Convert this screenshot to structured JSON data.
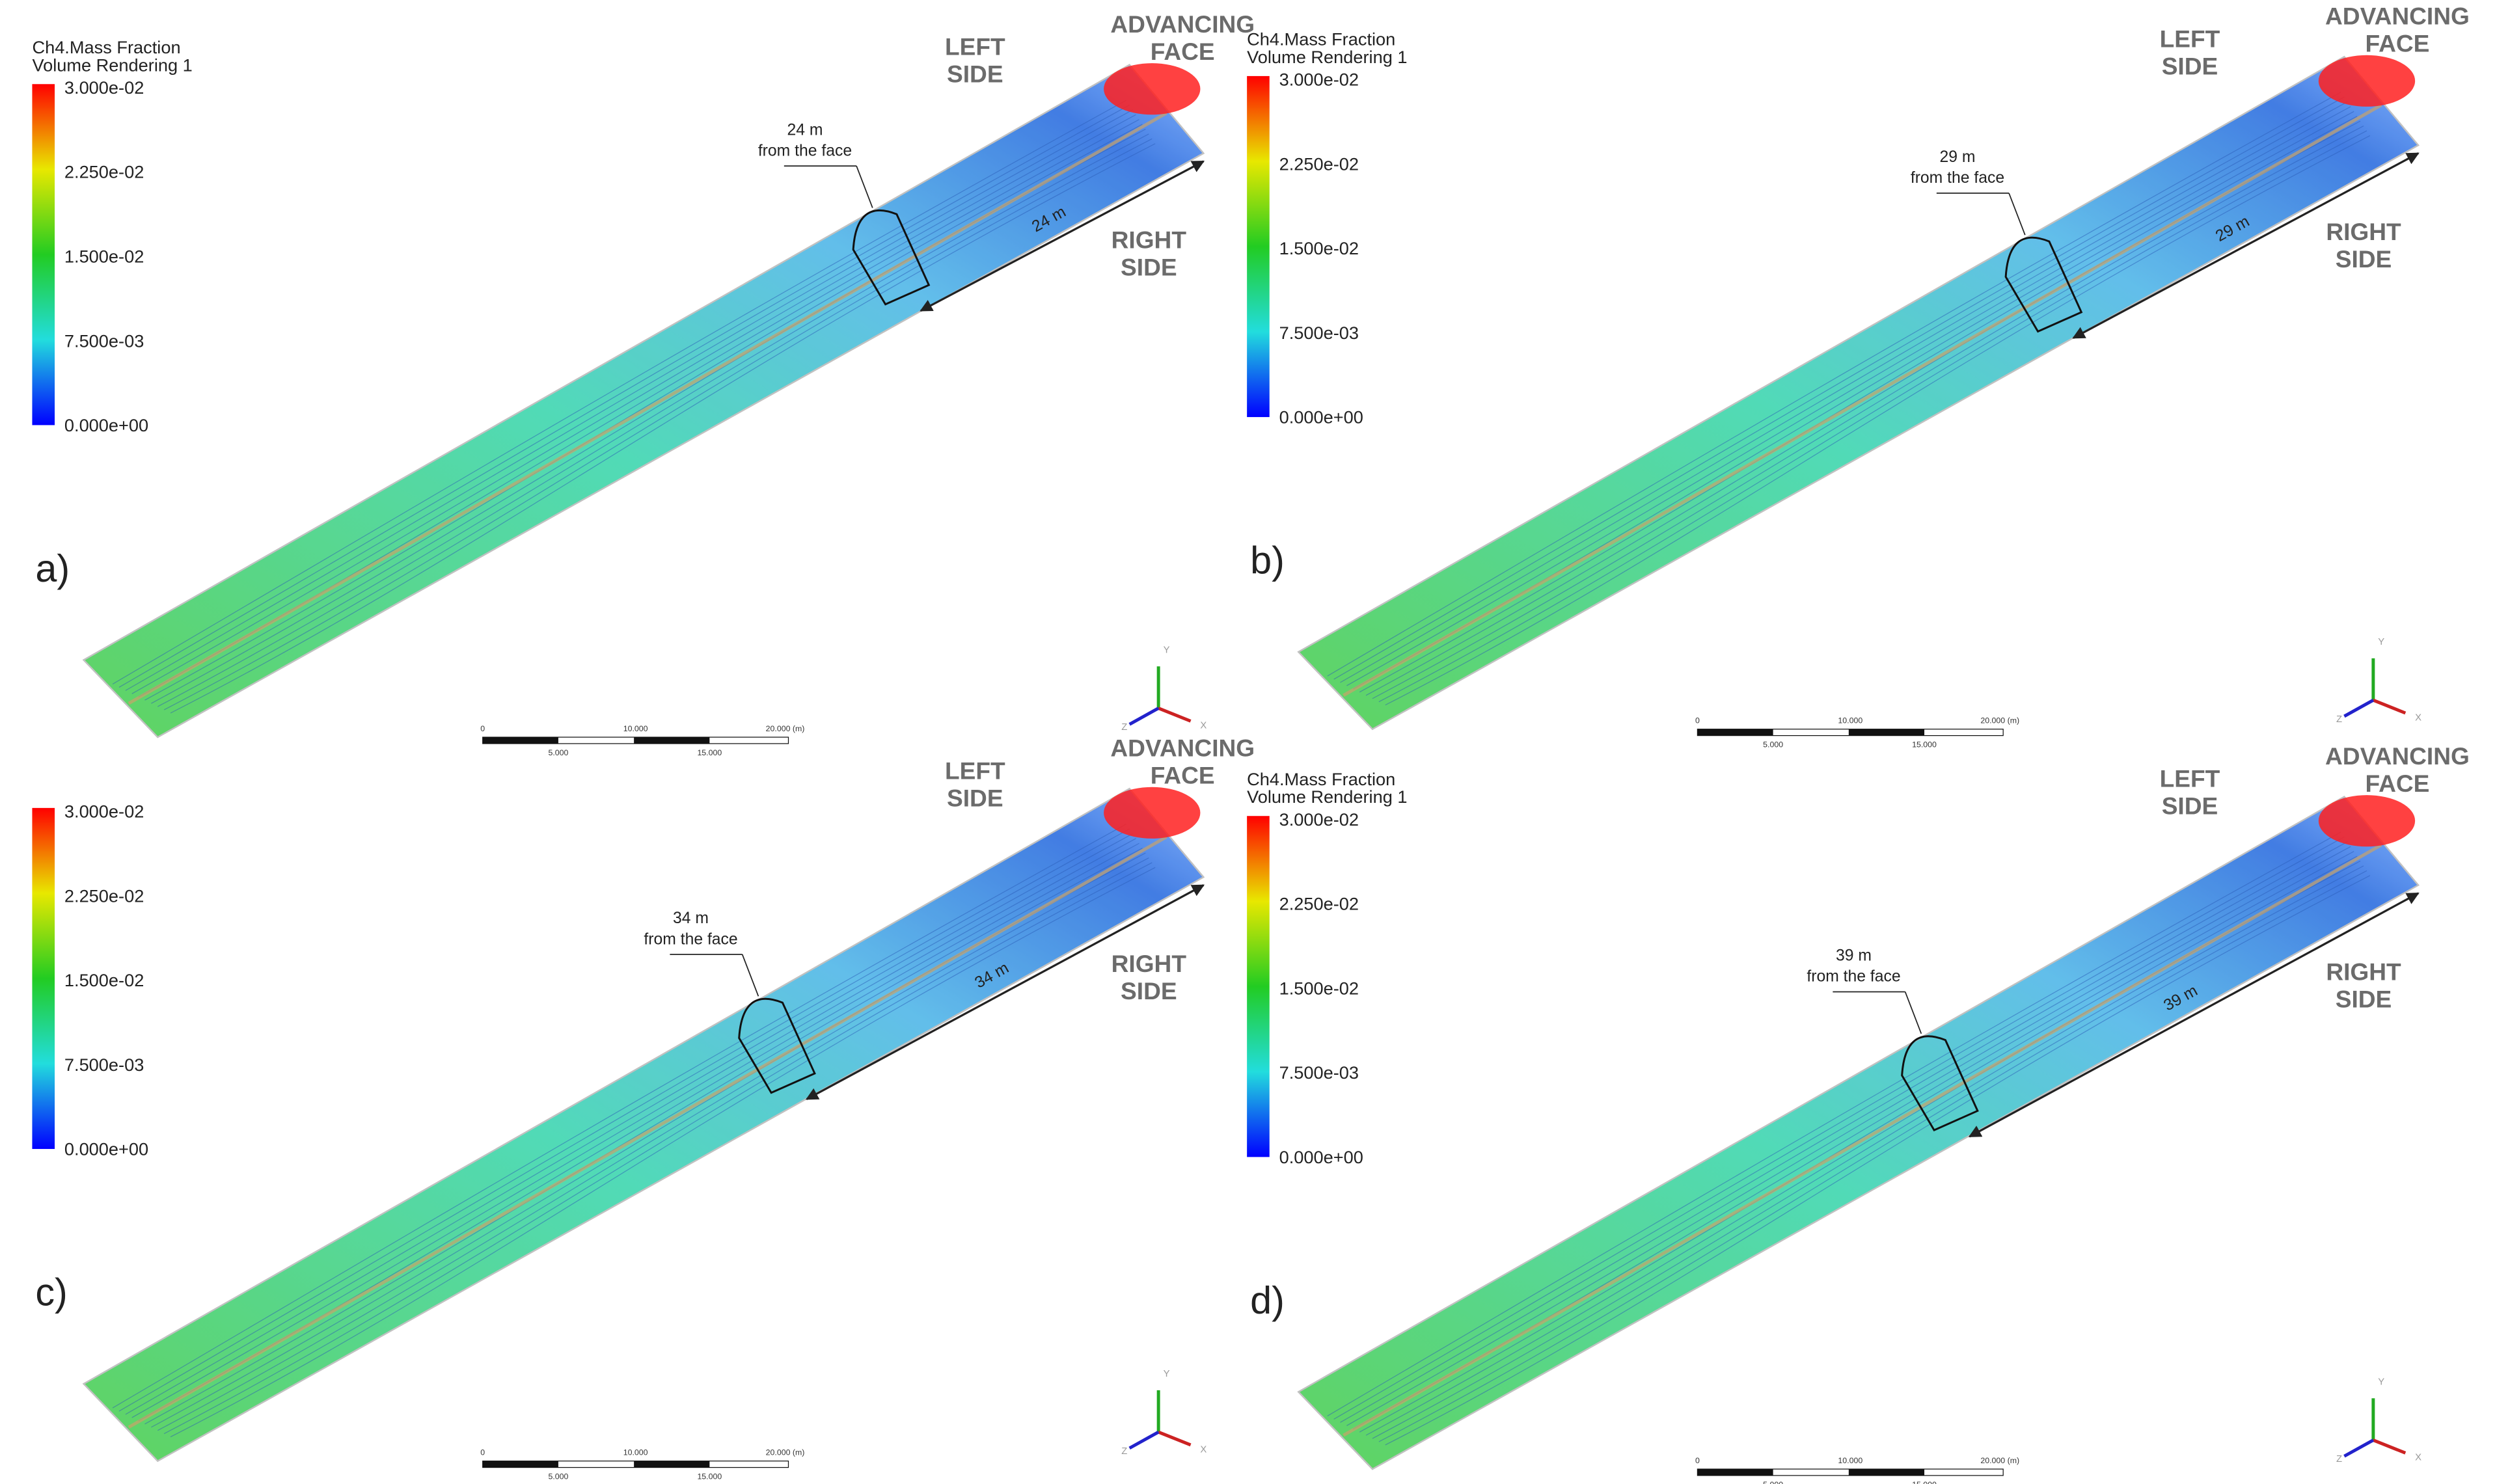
{
  "legend": {
    "ticks": [
      "3.000e-02",
      "2.250e-02",
      "1.500e-02",
      "7.500e-03",
      "0.000e+00"
    ]
  },
  "scale_bar": {
    "top": [
      "0",
      "10.000",
      "20.000 (m)"
    ],
    "bottom": [
      "5.000",
      "15.000"
    ]
  },
  "triad": [
    "Y",
    "X",
    "Z"
  ],
  "panels": [
    {
      "label": "a)",
      "legend_title": [
        "Ch4.Mass Fraction",
        "Volume Rendering 1"
      ],
      "left_side": [
        "LEFT",
        "SIDE"
      ],
      "advancing_face": [
        "ADVANCING",
        "FACE"
      ],
      "right_side": [
        "RIGHT",
        "SIDE"
      ],
      "distance_note": [
        "24 m",
        "from the face"
      ],
      "arrow_label": "24 m"
    },
    {
      "label": "b)",
      "legend_title": [
        "Ch4.Mass Fraction",
        "Volume Rendering 1"
      ],
      "left_side": [
        "LEFT",
        "SIDE"
      ],
      "advancing_face": [
        "ADVANCING",
        "FACE"
      ],
      "right_side": [
        "RIGHT",
        "SIDE"
      ],
      "distance_note": [
        "29 m",
        "from the face"
      ],
      "arrow_label": "29 m"
    },
    {
      "label": "c)",
      "left_side": [
        "LEFT",
        "SIDE"
      ],
      "advancing_face": [
        "ADVANCING",
        "FACE"
      ],
      "right_side": [
        "RIGHT",
        "SIDE"
      ],
      "distance_note": [
        "34 m",
        "from the face"
      ],
      "arrow_label": "34 m"
    },
    {
      "label": "d)",
      "legend_title": [
        "Ch4.Mass Fraction",
        "Volume Rendering 1"
      ],
      "left_side": [
        "LEFT",
        "SIDE"
      ],
      "advancing_face": [
        "ADVANCING",
        "FACE"
      ],
      "right_side": [
        "RIGHT",
        "SIDE"
      ],
      "distance_note": [
        "39 m",
        "from the face"
      ],
      "arrow_label": "39 m"
    }
  ]
}
